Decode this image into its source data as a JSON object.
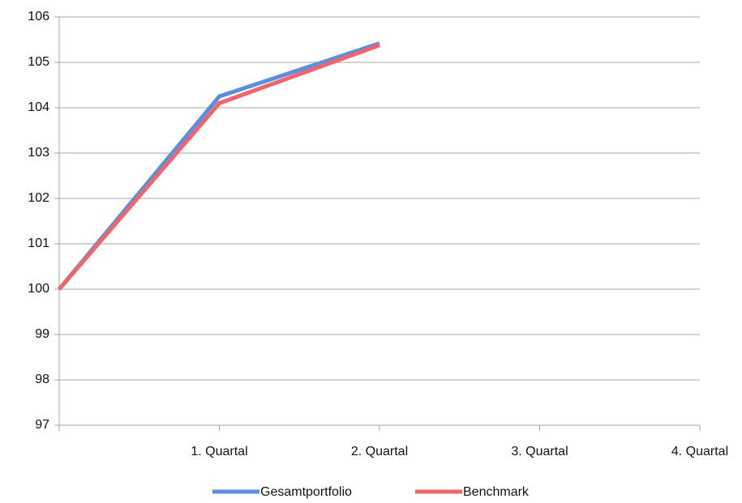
{
  "chart_data": {
    "type": "line",
    "categories": [
      null,
      "1. Quartal",
      "2. Quartal",
      "3. Quartal",
      "4. Quartal"
    ],
    "series": [
      {
        "name": "Gesamtportfolio",
        "color": "#5b8ee0",
        "values": [
          100,
          104.25,
          105.42,
          null,
          null
        ]
      },
      {
        "name": "Benchmark",
        "color": "#f0646a",
        "values": [
          100,
          104.1,
          105.38,
          null,
          null
        ]
      }
    ],
    "ylim": [
      97,
      106
    ],
    "yticks": [
      97,
      98,
      99,
      100,
      101,
      102,
      103,
      104,
      105,
      106
    ],
    "grid": true,
    "legend": "bottom"
  }
}
